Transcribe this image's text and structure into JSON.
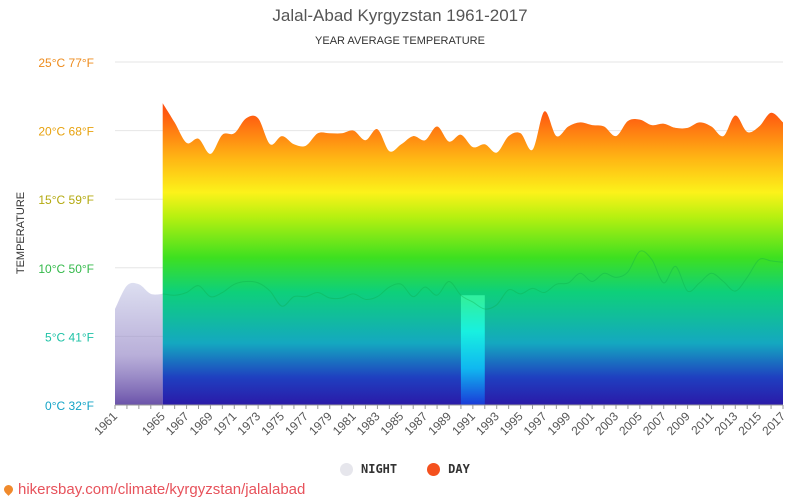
{
  "chart_data": {
    "type": "area",
    "title": "Jalal-Abad Kyrgyzstan 1961-2017",
    "subtitle": "YEAR AVERAGE TEMPERATURE",
    "ylabel": "TEMPERATURE",
    "xlabel": "",
    "ylim": [
      0,
      25
    ],
    "y_ticks": [
      "0°C 32°F",
      "5°C 41°F",
      "10°C 50°F",
      "15°C 59°F",
      "20°C 68°F",
      "25°C 77°F"
    ],
    "y_tick_values": [
      0,
      5,
      10,
      15,
      20,
      25
    ],
    "x_ticks": [
      "1961",
      "1965",
      "1967",
      "1969",
      "1971",
      "1973",
      "1975",
      "1977",
      "1979",
      "1981",
      "1983",
      "1985",
      "1987",
      "1989",
      "1991",
      "1993",
      "1995",
      "1997",
      "1999",
      "2001",
      "2003",
      "2005",
      "2007",
      "2009",
      "2011",
      "2013",
      "2015",
      "2017"
    ],
    "x": [
      1961,
      1962,
      1963,
      1964,
      1965,
      1966,
      1967,
      1968,
      1969,
      1970,
      1971,
      1972,
      1973,
      1974,
      1975,
      1976,
      1977,
      1978,
      1979,
      1980,
      1981,
      1982,
      1983,
      1984,
      1985,
      1986,
      1987,
      1988,
      1989,
      1990,
      1991,
      1992,
      1993,
      1994,
      1995,
      1996,
      1997,
      1998,
      1999,
      2000,
      2001,
      2002,
      2003,
      2004,
      2005,
      2006,
      2007,
      2008,
      2009,
      2010,
      2011,
      2012,
      2013,
      2014,
      2015,
      2016,
      2017
    ],
    "series": [
      {
        "name": "NIGHT",
        "values": [
          7.0,
          8.7,
          8.8,
          8.1,
          8.1,
          8.0,
          8.2,
          8.7,
          7.9,
          8.2,
          8.8,
          9.0,
          8.9,
          8.3,
          7.2,
          7.9,
          7.9,
          8.2,
          7.8,
          7.8,
          8.1,
          7.7,
          7.9,
          8.6,
          8.8,
          7.9,
          8.6,
          8.0,
          9.0,
          8.0,
          7.5,
          7.0,
          7.3,
          8.4,
          8.1,
          8.5,
          8.2,
          8.8,
          8.9,
          9.6,
          9.0,
          9.6,
          9.3,
          9.7,
          11.2,
          10.6,
          8.9,
          10.1,
          8.3,
          8.9,
          9.6,
          9.0,
          8.3,
          9.3,
          10.6,
          10.5,
          10.4
        ]
      },
      {
        "name": "DAY",
        "values": [
          null,
          null,
          null,
          null,
          22.0,
          20.6,
          19.1,
          19.4,
          18.3,
          19.7,
          19.8,
          20.9,
          20.9,
          19.0,
          19.6,
          19.0,
          18.9,
          19.8,
          19.8,
          19.8,
          20.0,
          19.3,
          20.1,
          18.5,
          19.0,
          19.6,
          19.3,
          20.3,
          19.2,
          19.7,
          18.8,
          19.0,
          18.4,
          19.6,
          19.8,
          18.6,
          21.4,
          19.6,
          20.3,
          20.6,
          20.4,
          20.3,
          19.6,
          20.7,
          20.8,
          20.4,
          20.5,
          20.2,
          20.2,
          20.6,
          20.3,
          19.6,
          21.1,
          19.9,
          20.3,
          21.3,
          20.6
        ]
      }
    ],
    "legend": "bottom-center",
    "grid": true,
    "colors": {
      "night": "#e6e6ec",
      "day": "#f4511e"
    }
  },
  "legend": [
    {
      "label": "NIGHT",
      "color": "#e6e6ec"
    },
    {
      "label": "DAY",
      "color": "#f4511e"
    }
  ],
  "source": "hikersbay.com/climate/kyrgyzstan/jalalabad"
}
